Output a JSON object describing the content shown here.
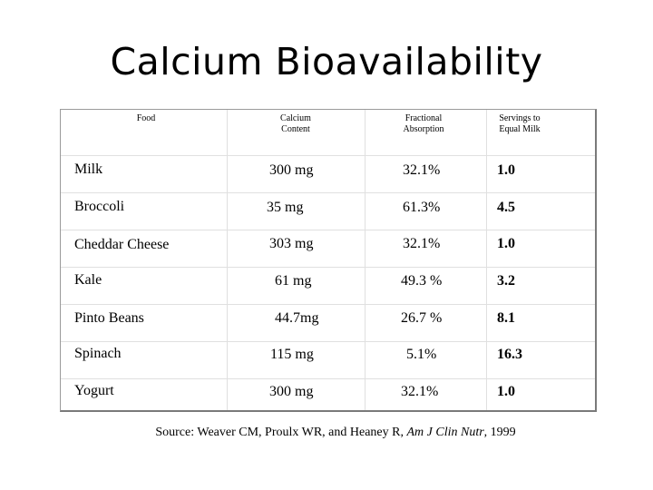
{
  "title": "Calcium Bioavailability",
  "table": {
    "headers": [
      [
        "Food"
      ],
      [
        "Calcium",
        "Content"
      ],
      [
        "Fractional",
        "Absorption"
      ],
      [
        "Servings to",
        "Equal Milk"
      ]
    ],
    "rows": [
      {
        "food": "Milk",
        "calcium": "300 mg",
        "absorption": "32.1%",
        "servings": "1.0"
      },
      {
        "food": "Broccoli",
        "calcium": "35 mg",
        "absorption": "61.3%",
        "servings": "4.5"
      },
      {
        "food": "Cheddar Cheese",
        "calcium": "303 mg",
        "absorption": "32.1%",
        "servings": "1.0"
      },
      {
        "food": "Kale",
        "calcium": "61 mg",
        "absorption": "49.3 %",
        "servings": "3.2"
      },
      {
        "food": "Pinto Beans",
        "calcium": "44.7mg",
        "absorption": "26.7 %",
        "servings": "8.1"
      },
      {
        "food": "Spinach",
        "calcium": "115 mg",
        "absorption": "5.1%",
        "servings": "16.3"
      },
      {
        "food": "Yogurt",
        "calcium": "300 mg",
        "absorption": "32.1%",
        "servings": "1.0"
      }
    ]
  },
  "source": {
    "prefix": "Source:  Weaver CM, Proulx WR, and Heaney R, ",
    "journal": "Am J Clin Nutr",
    "suffix": ", 1999"
  }
}
